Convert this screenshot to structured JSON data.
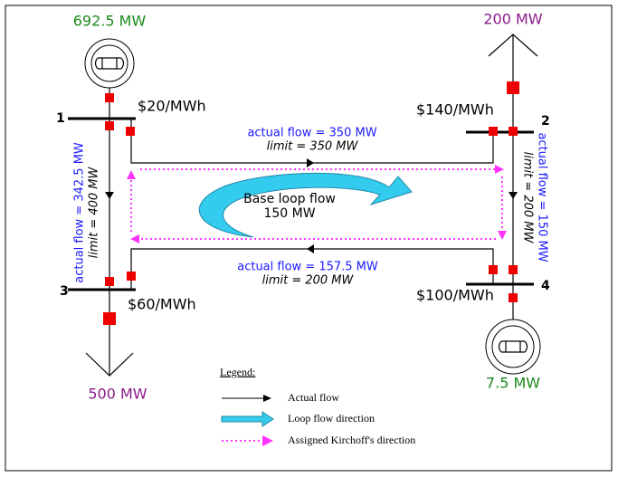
{
  "generation": {
    "bus1": "692.5 MW",
    "bus4": "7.5 MW"
  },
  "loads": {
    "bus2": "200 MW",
    "bus3": "500 MW"
  },
  "buses": [
    {
      "label": "1",
      "price": "$20/MWh"
    },
    {
      "label": "2",
      "price": "$140/MWh"
    },
    {
      "label": "3",
      "price": "$60/MWh"
    },
    {
      "label": "4",
      "price": "$100/MWh"
    }
  ],
  "lines": [
    {
      "from": "1",
      "to": "2",
      "actual": "actual flow = 350 MW",
      "limit": "limit = 350 MW"
    },
    {
      "from": "1",
      "to": "3",
      "actual": "actual flow = 342.5 MW",
      "limit": "limit = 400 MW"
    },
    {
      "from": "2",
      "to": "4",
      "actual": "actual flow = 150 MW",
      "limit": "limit = 200 MW"
    },
    {
      "from": "3",
      "to": "4",
      "actual": "actual flow = 157.5 MW",
      "limit": "limit = 200 MW"
    }
  ],
  "loop": {
    "title": "Base loop flow",
    "value": "150 MW"
  },
  "legend": {
    "title": "Legend:",
    "items": [
      "Actual flow",
      "Loop flow direction",
      "Assigned Kirchoff's direction"
    ]
  }
}
